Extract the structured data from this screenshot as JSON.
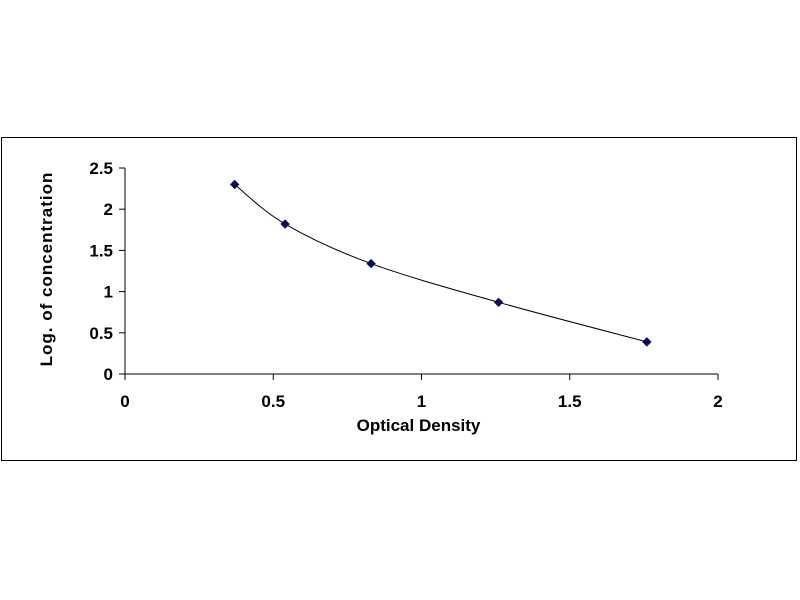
{
  "chart_data": {
    "type": "line",
    "xlabel": "Optical Density",
    "ylabel": "Log. of concentration",
    "xlim": [
      0,
      2
    ],
    "ylim": [
      0,
      2.5
    ],
    "x_ticks": [
      "0",
      "0.5",
      "1",
      "1.5",
      "2"
    ],
    "y_ticks": [
      "0",
      "0.5",
      "1",
      "1.5",
      "2",
      "2.5"
    ],
    "x_tick_values": [
      0,
      0.5,
      1,
      1.5,
      2
    ],
    "y_tick_values": [
      0,
      0.5,
      1,
      1.5,
      2,
      2.5
    ],
    "grid": false,
    "legend": "none",
    "series": [
      {
        "x": [
          0.37,
          0.54,
          0.83,
          1.26,
          1.76
        ],
        "y": [
          2.3,
          1.82,
          1.34,
          0.87,
          0.39
        ],
        "color": "#0a0a5e",
        "marker": "diamond",
        "line": "smooth"
      }
    ]
  }
}
